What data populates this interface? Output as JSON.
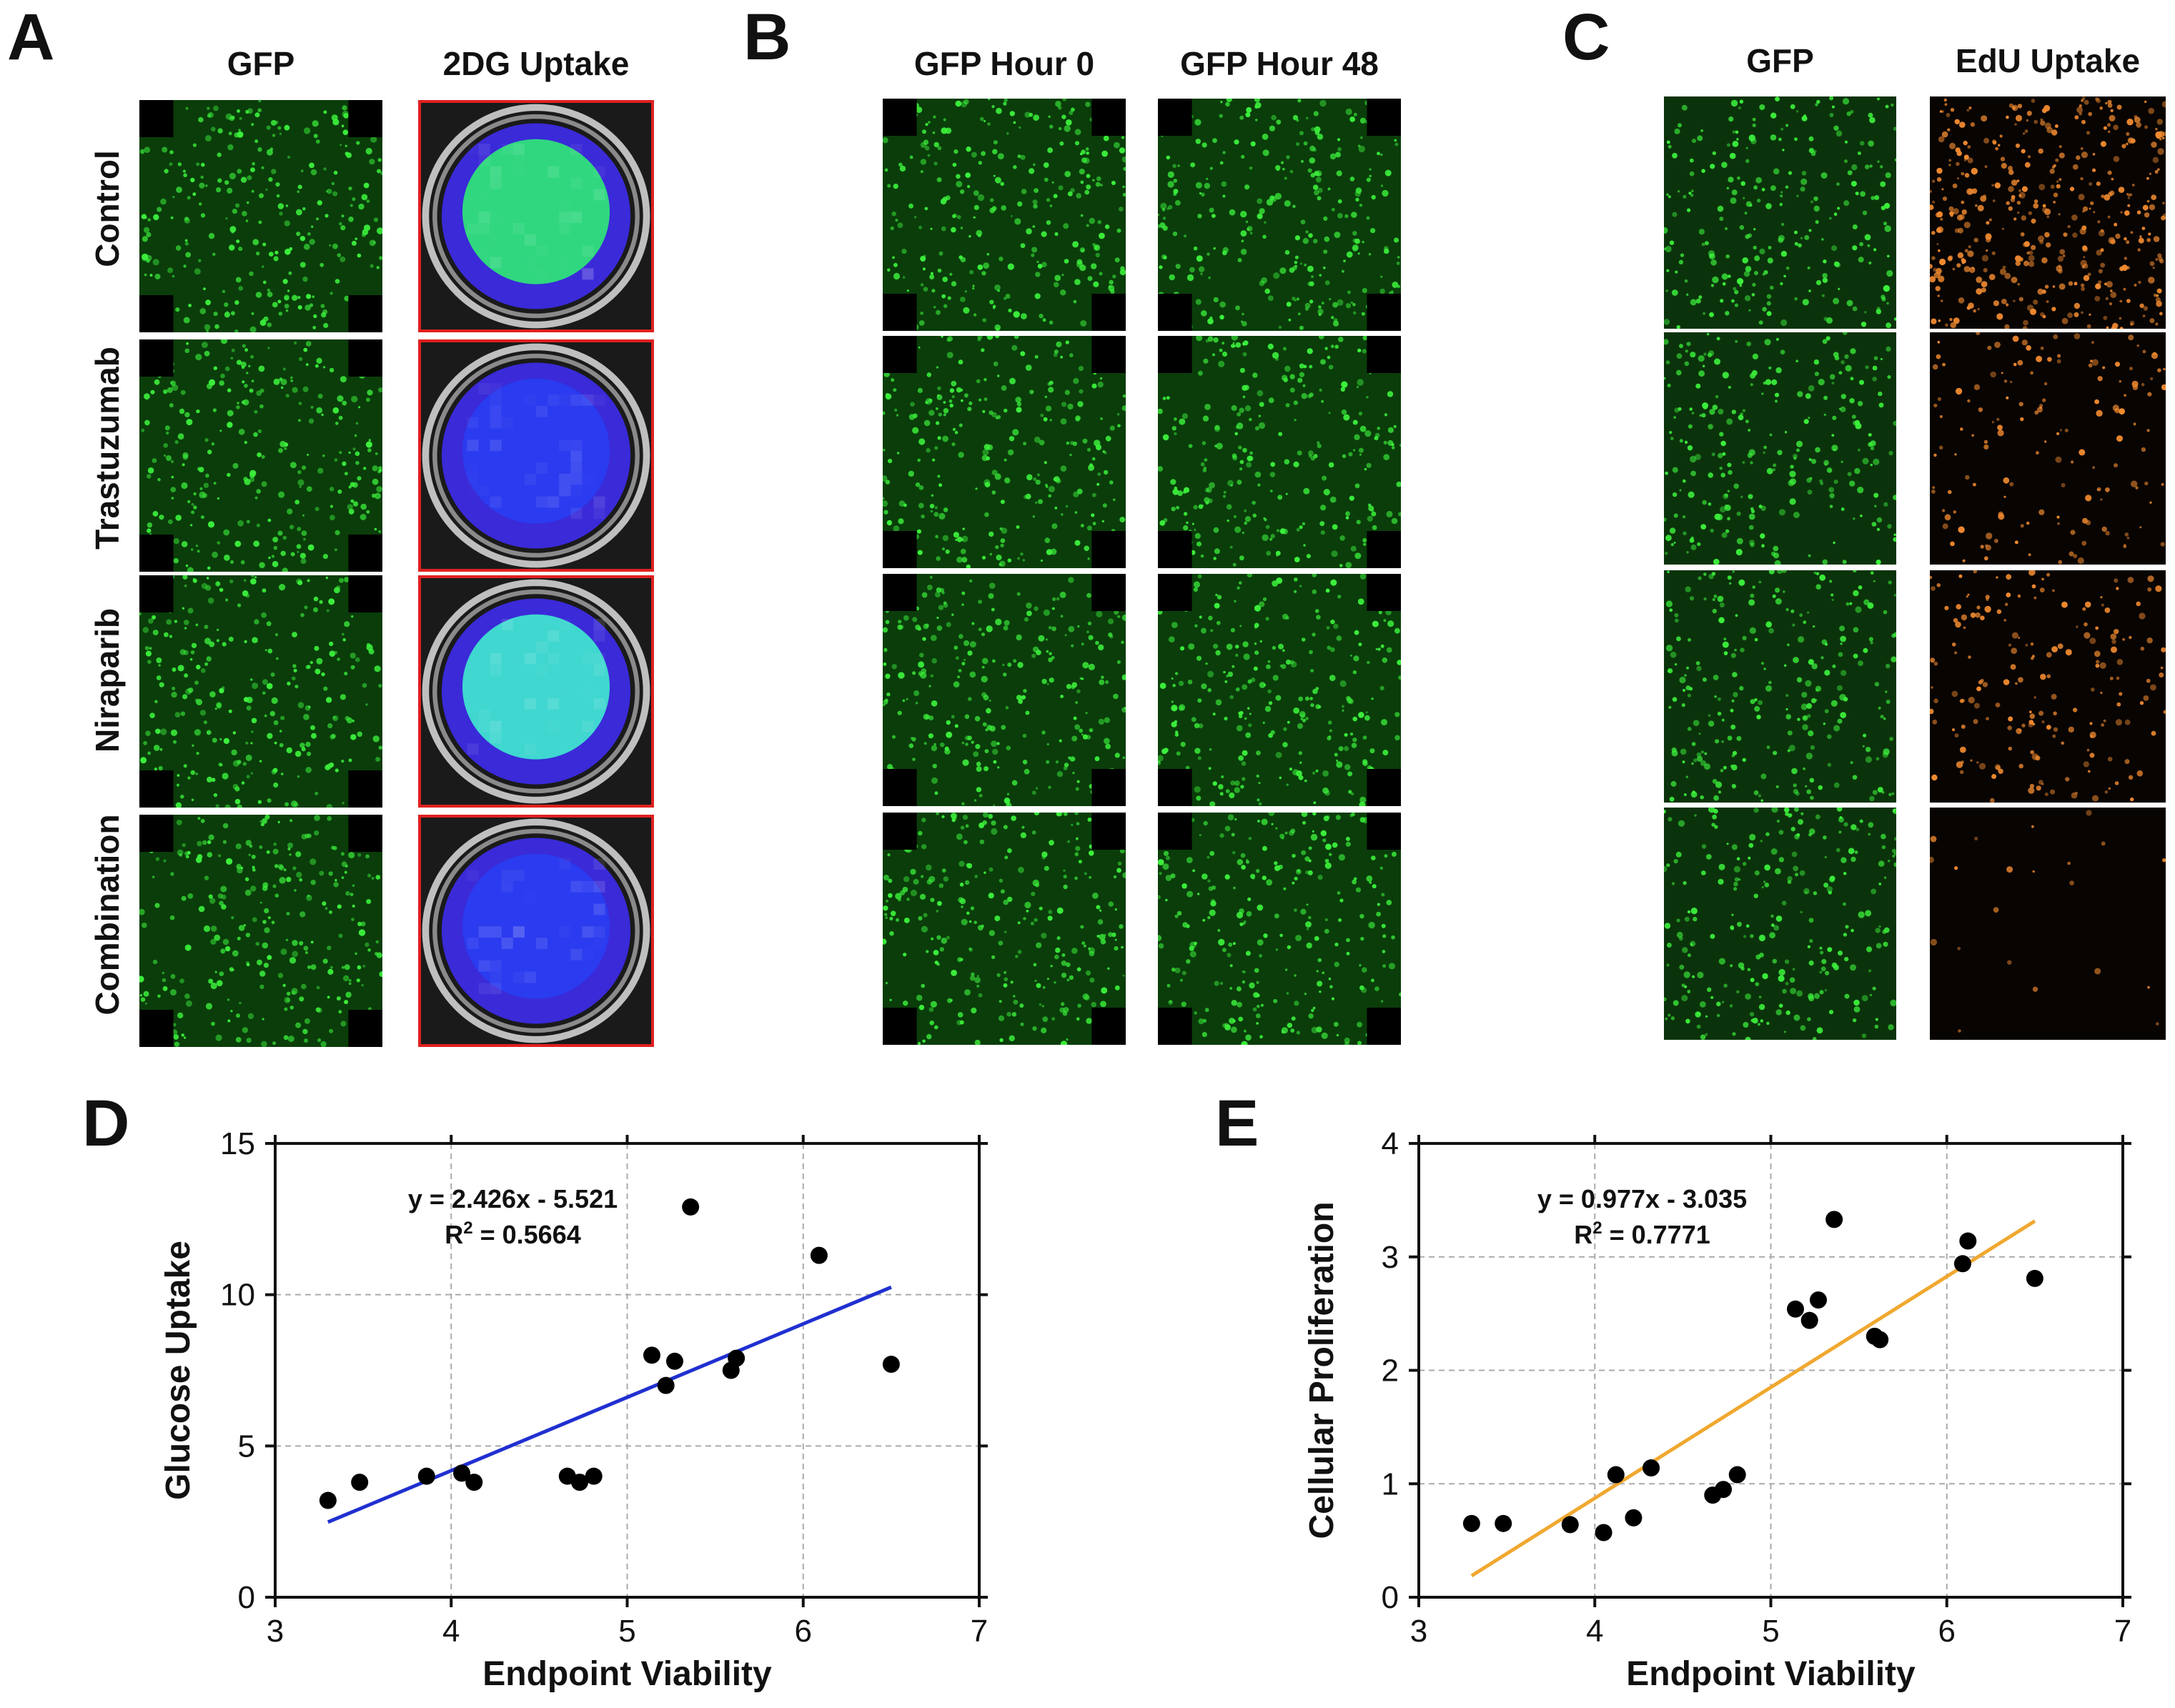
{
  "panels": {
    "A": {
      "letter": "A",
      "columns": [
        "GFP",
        "2DG Uptake"
      ],
      "rows": [
        "Control",
        "Trastuzumab",
        "Niraparib",
        "Combination"
      ],
      "uptake_colors": [
        "#2fe07a",
        "#2a3cf0",
        "#3fe0d0",
        "#2a3cf0"
      ],
      "frame_color": "#e02020"
    },
    "B": {
      "letter": "B",
      "columns": [
        "GFP Hour 0",
        "GFP Hour 48"
      ]
    },
    "C": {
      "letter": "C",
      "columns": [
        "GFP",
        "EdU Uptake"
      ],
      "edu_intensity": [
        1.0,
        0.35,
        0.45,
        0.05
      ]
    },
    "D": {
      "letter": "D"
    },
    "E": {
      "letter": "E"
    }
  },
  "colors": {
    "gfp_background": "#0a3d0a",
    "gfp_cell": "#3cf03c",
    "edu_cell": "#f08a30",
    "line_D": "#2030d0",
    "line_E": "#f0a830",
    "point": "#000000"
  },
  "chart_data": [
    {
      "id": "D",
      "type": "scatter",
      "xlabel": "Endpoint Viability",
      "ylabel": "Glucose Uptake",
      "xlim": [
        3,
        7
      ],
      "ylim": [
        0,
        15
      ],
      "xticks": [
        "3",
        "4",
        "5",
        "6",
        "7"
      ],
      "yticks": [
        "0",
        "5",
        "10",
        "15"
      ],
      "grid": true,
      "equation": "y = 2.426x - 5.521",
      "r2_label": "R",
      "r2_sup": "2",
      "r2_value": " = 0.5664",
      "fit": {
        "slope": 2.426,
        "intercept": -5.521,
        "x_range": [
          3.3,
          6.5
        ]
      },
      "points": [
        {
          "x": 3.3,
          "y": 3.2
        },
        {
          "x": 3.48,
          "y": 3.8
        },
        {
          "x": 3.86,
          "y": 4.0
        },
        {
          "x": 4.06,
          "y": 4.1
        },
        {
          "x": 4.13,
          "y": 3.8
        },
        {
          "x": 4.66,
          "y": 4.0
        },
        {
          "x": 4.73,
          "y": 3.8
        },
        {
          "x": 4.81,
          "y": 4.0
        },
        {
          "x": 5.14,
          "y": 8.0
        },
        {
          "x": 5.22,
          "y": 7.0
        },
        {
          "x": 5.27,
          "y": 7.8
        },
        {
          "x": 5.36,
          "y": 12.9
        },
        {
          "x": 5.59,
          "y": 7.5
        },
        {
          "x": 5.62,
          "y": 7.9
        },
        {
          "x": 6.09,
          "y": 11.3
        },
        {
          "x": 6.5,
          "y": 7.7
        }
      ]
    },
    {
      "id": "E",
      "type": "scatter",
      "xlabel": "Endpoint Viability",
      "ylabel": "Cellular Proliferation",
      "xlim": [
        3,
        7
      ],
      "ylim": [
        0,
        4
      ],
      "xticks": [
        "3",
        "4",
        "5",
        "6",
        "7"
      ],
      "yticks": [
        "0",
        "1",
        "2",
        "3",
        "4"
      ],
      "grid": true,
      "equation": "y = 0.977x - 3.035",
      "r2_label": "R",
      "r2_sup": "2",
      "r2_value": " = 0.7771",
      "fit": {
        "slope": 0.977,
        "intercept": -3.035,
        "x_range": [
          3.3,
          6.5
        ]
      },
      "points": [
        {
          "x": 3.3,
          "y": 0.65
        },
        {
          "x": 3.48,
          "y": 0.65
        },
        {
          "x": 3.86,
          "y": 0.64
        },
        {
          "x": 4.05,
          "y": 0.57
        },
        {
          "x": 4.12,
          "y": 1.08
        },
        {
          "x": 4.22,
          "y": 0.7
        },
        {
          "x": 4.32,
          "y": 1.14
        },
        {
          "x": 4.67,
          "y": 0.9
        },
        {
          "x": 4.73,
          "y": 0.95
        },
        {
          "x": 4.81,
          "y": 1.08
        },
        {
          "x": 5.14,
          "y": 2.54
        },
        {
          "x": 5.22,
          "y": 2.44
        },
        {
          "x": 5.27,
          "y": 2.62
        },
        {
          "x": 5.36,
          "y": 3.33
        },
        {
          "x": 5.59,
          "y": 2.3
        },
        {
          "x": 5.62,
          "y": 2.27
        },
        {
          "x": 6.09,
          "y": 2.94
        },
        {
          "x": 6.12,
          "y": 3.14
        },
        {
          "x": 6.5,
          "y": 2.81
        }
      ]
    }
  ]
}
